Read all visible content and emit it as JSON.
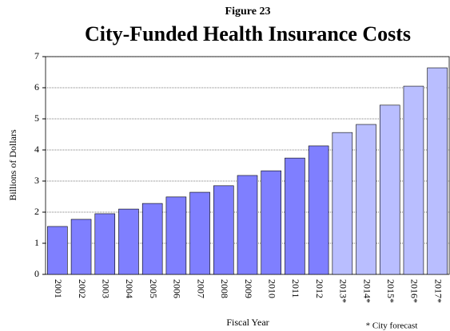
{
  "chart_data": {
    "type": "bar",
    "supertitle": "Figure 23",
    "title": "City-Funded Health Insurance Costs",
    "ylabel": "Billions of Dollars",
    "xlabel": "Fiscal Year",
    "note": "* City forecast",
    "categories": [
      "2001",
      "2002",
      "2003",
      "2004",
      "2005",
      "2006",
      "2007",
      "2008",
      "2009",
      "2010",
      "2011",
      "2012",
      "2013*",
      "2014*",
      "2015*",
      "2016*",
      "2017*"
    ],
    "values": [
      1.54,
      1.77,
      1.95,
      2.1,
      2.28,
      2.49,
      2.64,
      2.85,
      3.18,
      3.33,
      3.74,
      4.13,
      4.56,
      4.82,
      5.44,
      6.05,
      6.64
    ],
    "colors": [
      "#7f7fff",
      "#7f7fff",
      "#7f7fff",
      "#7f7fff",
      "#7f7fff",
      "#7f7fff",
      "#7f7fff",
      "#7f7fff",
      "#7f7fff",
      "#7f7fff",
      "#7f7fff",
      "#7f7fff",
      "#b9beff",
      "#b9beff",
      "#b9beff",
      "#b9beff",
      "#b9beff"
    ],
    "ylim": [
      0,
      7
    ],
    "yticks": [
      0,
      1,
      2,
      3,
      4,
      5,
      6,
      7
    ],
    "grid": true
  }
}
